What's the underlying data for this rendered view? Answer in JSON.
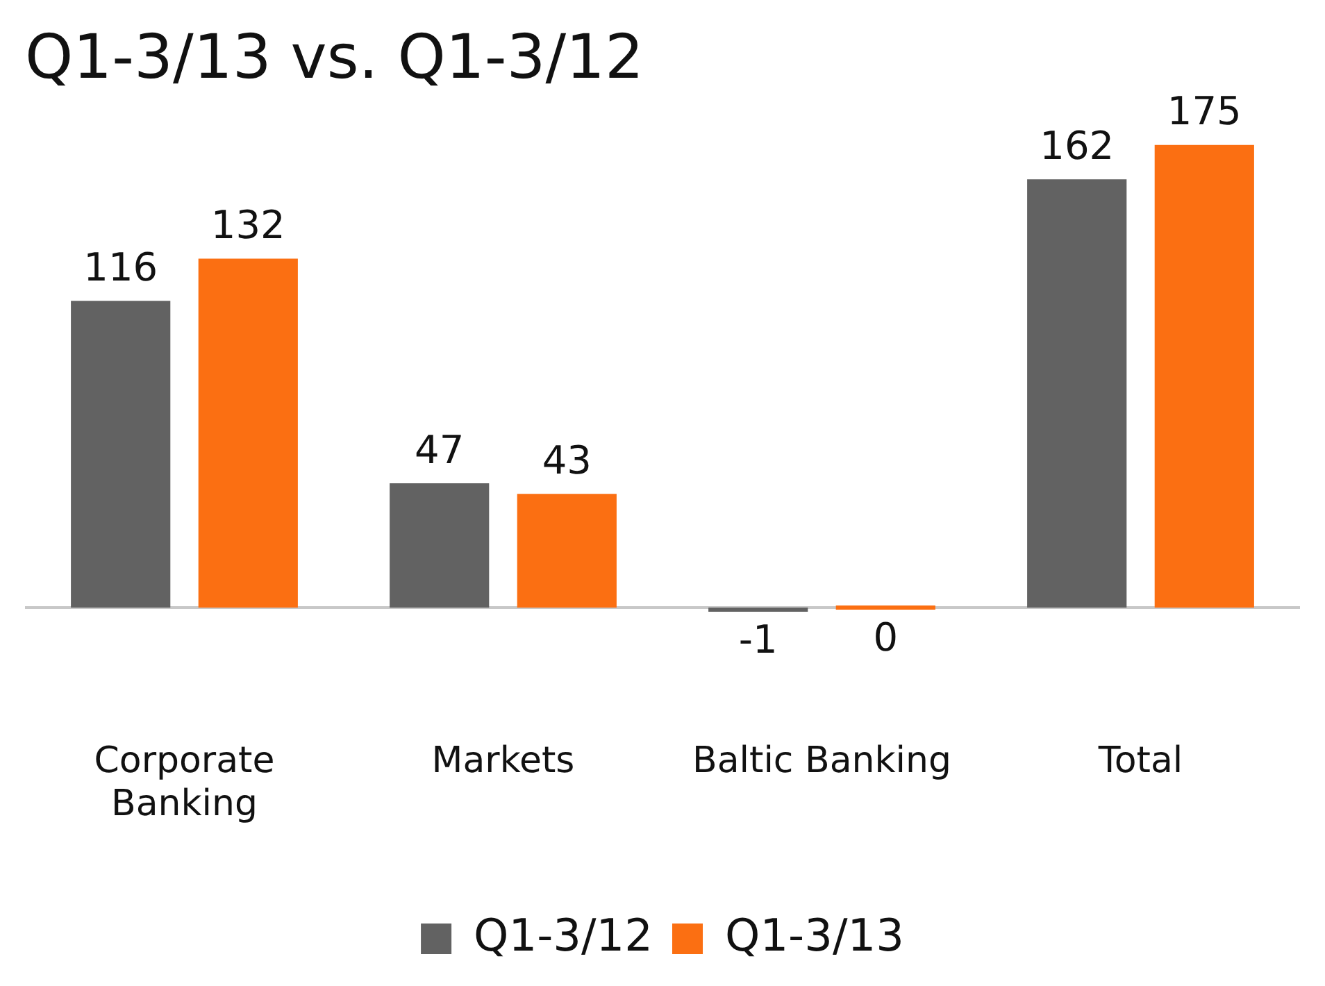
{
  "chart_data": {
    "type": "bar",
    "title": "Q1-3/13 vs. Q1-3/12",
    "categories": [
      "Corporate Banking",
      "Markets",
      "Baltic Banking",
      "Total"
    ],
    "series": [
      {
        "name": "Q1-3/12",
        "color": "#626262",
        "values": [
          116,
          47,
          -1,
          162
        ]
      },
      {
        "name": "Q1-3/13",
        "color": "#fb6f12",
        "values": [
          132,
          43,
          0,
          175
        ]
      }
    ],
    "data_labels": true,
    "legend": "bottom"
  }
}
